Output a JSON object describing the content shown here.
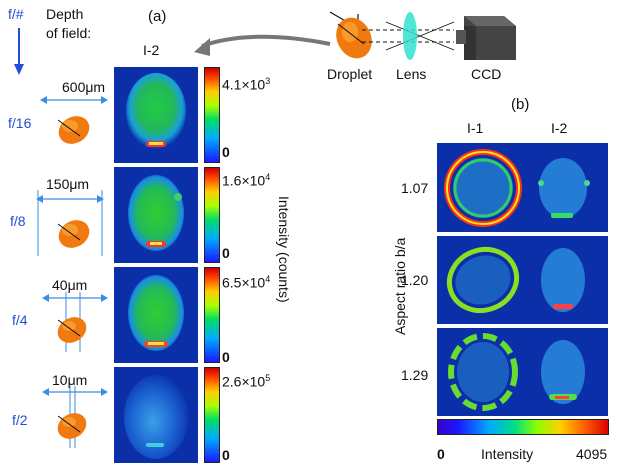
{
  "left_column": {
    "fnumber_header": "f/#",
    "dof_header_line1": "Depth",
    "dof_header_line2": "of field:",
    "rows": [
      {
        "fnumber": "f/16",
        "depth": "600μm"
      },
      {
        "fnumber": "f/8",
        "depth": "150μm"
      },
      {
        "fnumber": "f/4",
        "depth": "40μm"
      },
      {
        "fnumber": "f/2",
        "depth": "10μm"
      }
    ]
  },
  "panel_a": {
    "label": "(a)",
    "column_title": "I-2",
    "colorbars": [
      {
        "max_mantissa": "4.1×10",
        "max_exp": "3",
        "min": "0"
      },
      {
        "max_mantissa": "1.6×10",
        "max_exp": "4",
        "min": "0"
      },
      {
        "max_mantissa": "6.5×10",
        "max_exp": "4",
        "min": "0"
      },
      {
        "max_mantissa": "2.6×10",
        "max_exp": "5",
        "min": "0"
      }
    ],
    "axis_label": "Intensity (counts)"
  },
  "setup": {
    "droplet": "Droplet",
    "lens": "Lens",
    "ccd": "CCD"
  },
  "panel_b": {
    "label": "(b)",
    "col1": "I-1",
    "col2": "I-2",
    "axis_label": "Aspect ratio b/a",
    "aspect_ratios": [
      "1.07",
      "1.20",
      "1.29"
    ],
    "colorbar_min": "0",
    "colorbar_title": "Intensity",
    "colorbar_max": "4095"
  },
  "colors": {
    "panel_background": "#0b2fa8",
    "annotation_blue": "#1f4fd8",
    "droplet_orange": "#f07a10"
  }
}
